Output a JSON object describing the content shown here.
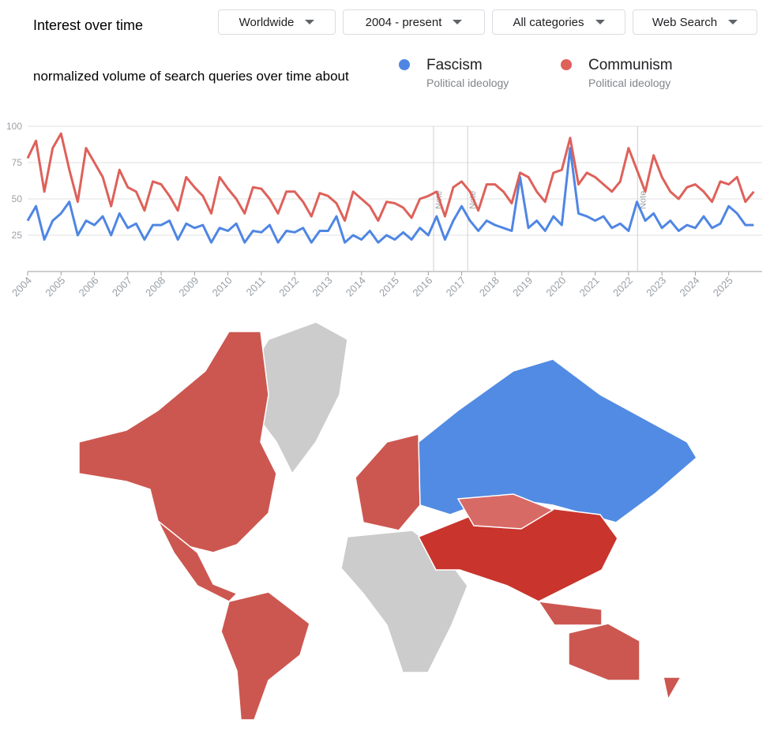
{
  "header": {
    "title": "Interest over time",
    "filters": [
      "Worldwide",
      "2004 - present",
      "All categories",
      "Web Search"
    ]
  },
  "chart_data": {
    "type": "line",
    "subtitle": "normalized volume of search queries over time about",
    "x": [
      2004,
      2004.25,
      2004.5,
      2004.75,
      2005,
      2005.25,
      2005.5,
      2005.75,
      2006,
      2006.25,
      2006.5,
      2006.75,
      2007,
      2007.25,
      2007.5,
      2007.75,
      2008,
      2008.25,
      2008.5,
      2008.75,
      2009,
      2009.25,
      2009.5,
      2009.75,
      2010,
      2010.25,
      2010.5,
      2010.75,
      2011,
      2011.25,
      2011.5,
      2011.75,
      2012,
      2012.25,
      2012.5,
      2012.75,
      2013,
      2013.25,
      2013.5,
      2013.75,
      2014,
      2014.25,
      2014.5,
      2014.75,
      2015,
      2015.25,
      2015.5,
      2015.75,
      2016,
      2016.25,
      2016.5,
      2016.75,
      2017,
      2017.25,
      2017.5,
      2017.75,
      2018,
      2018.25,
      2018.5,
      2018.75,
      2019,
      2019.25,
      2019.5,
      2019.75,
      2020,
      2020.25,
      2020.5,
      2020.75,
      2021,
      2021.25,
      2021.5,
      2021.75,
      2022,
      2022.25,
      2022.5,
      2022.75,
      2023,
      2023.25,
      2023.5,
      2023.75,
      2024,
      2024.25,
      2024.5,
      2024.75,
      2025,
      2025.25,
      2025.5,
      2025.75
    ],
    "series": [
      {
        "name": "Fascism",
        "description": "Political ideology",
        "color": "#4f86e3",
        "values": [
          35,
          45,
          22,
          35,
          40,
          48,
          25,
          35,
          32,
          38,
          25,
          40,
          30,
          33,
          22,
          32,
          32,
          35,
          22,
          33,
          30,
          32,
          20,
          30,
          28,
          33,
          20,
          28,
          27,
          32,
          20,
          28,
          27,
          30,
          20,
          28,
          28,
          38,
          20,
          25,
          22,
          28,
          20,
          25,
          22,
          27,
          22,
          30,
          25,
          38,
          22,
          35,
          45,
          35,
          28,
          35,
          32,
          30,
          28,
          65,
          30,
          35,
          28,
          38,
          32,
          85,
          40,
          38,
          35,
          38,
          30,
          33,
          28,
          48,
          35,
          40,
          30,
          35,
          28,
          32,
          30,
          38,
          30,
          33,
          45,
          40,
          32,
          32
        ]
      },
      {
        "name": "Communism",
        "description": "Political ideology",
        "color": "#de615a",
        "values": [
          78,
          90,
          55,
          85,
          95,
          70,
          48,
          85,
          75,
          65,
          45,
          70,
          58,
          55,
          42,
          62,
          60,
          52,
          42,
          65,
          58,
          52,
          40,
          65,
          57,
          50,
          40,
          58,
          57,
          50,
          40,
          55,
          55,
          48,
          38,
          54,
          52,
          47,
          35,
          55,
          50,
          45,
          35,
          48,
          47,
          44,
          37,
          50,
          52,
          55,
          38,
          58,
          62,
          55,
          42,
          60,
          60,
          55,
          47,
          68,
          65,
          55,
          48,
          68,
          70,
          92,
          60,
          68,
          65,
          60,
          55,
          62,
          85,
          70,
          55,
          80,
          65,
          55,
          50,
          58,
          60,
          55,
          48,
          62,
          60,
          65,
          48,
          55
        ]
      }
    ],
    "xlim": [
      2004,
      2026
    ],
    "xticks": [
      2004,
      2005,
      2006,
      2007,
      2008,
      2009,
      2010,
      2011,
      2012,
      2013,
      2014,
      2015,
      2016,
      2017,
      2018,
      2019,
      2020,
      2021,
      2022,
      2023,
      2024,
      2025
    ],
    "ylim": [
      0,
      100
    ],
    "yticks": [
      25,
      50,
      75,
      100
    ],
    "grid": true,
    "notes": [
      {
        "x": 2016.16,
        "label": "Note"
      },
      {
        "x": 2017.18,
        "label": "Note"
      },
      {
        "x": 2022.27,
        "label": "Note"
      }
    ]
  }
}
